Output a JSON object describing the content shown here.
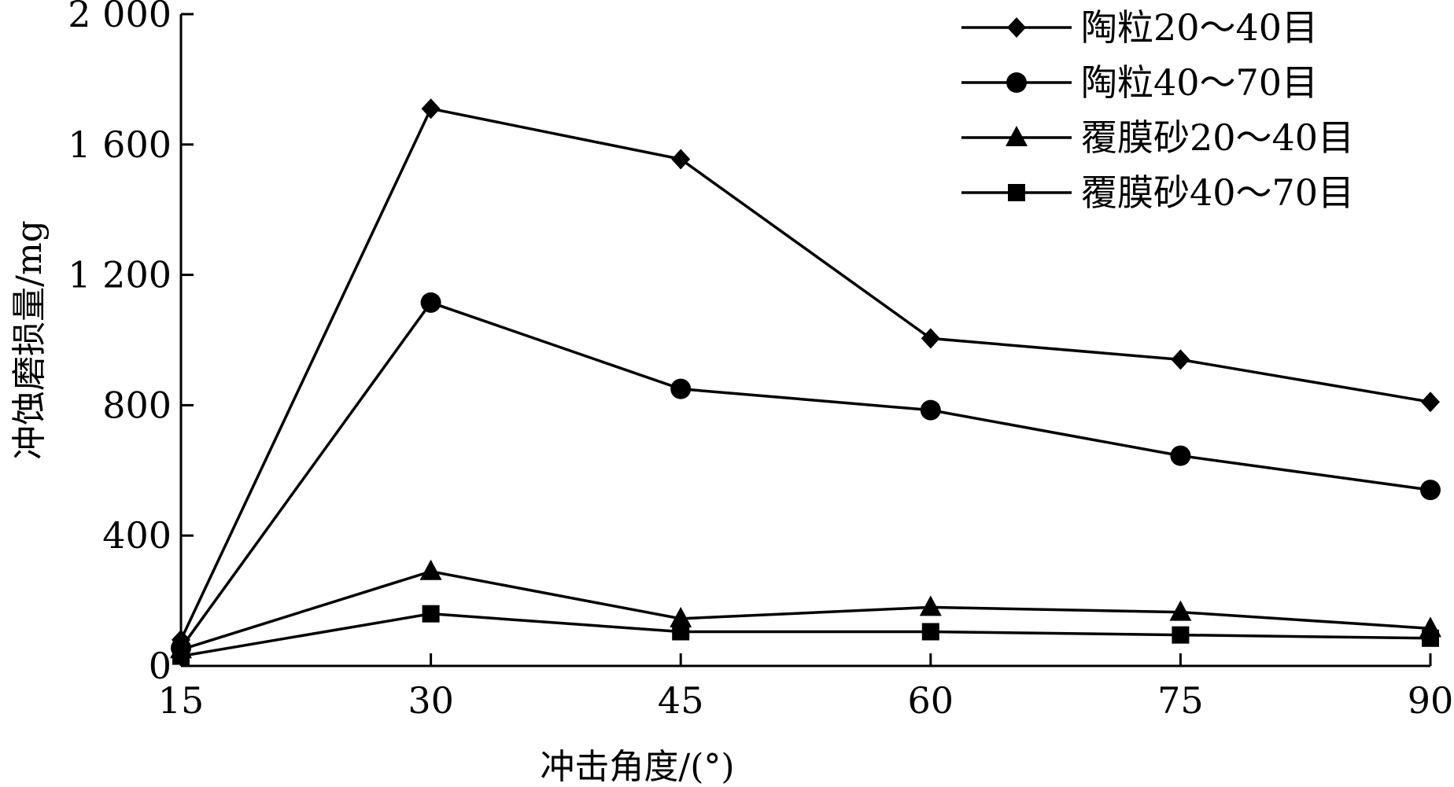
{
  "chart_data": {
    "type": "line",
    "title": "",
    "xlabel": "冲击角度/(°)",
    "ylabel": "冲蚀磨损量/mg",
    "x": [
      15,
      30,
      45,
      60,
      75,
      90
    ],
    "x_tick_labels": [
      "15",
      "30",
      "45",
      "60",
      "75",
      "90"
    ],
    "y_ticks": [
      0,
      400,
      800,
      1200,
      1600,
      2000
    ],
    "y_tick_labels": [
      "0",
      "400",
      "800",
      "1 200",
      "1 600",
      "2 000"
    ],
    "xlim": [
      15,
      90
    ],
    "ylim": [
      0,
      2000
    ],
    "grid": false,
    "legend_position": "top-right",
    "series": [
      {
        "name": "陶粒20～40目",
        "marker": "diamond",
        "values": [
          80,
          1710,
          1555,
          1005,
          940,
          810
        ]
      },
      {
        "name": "陶粒40～70目",
        "marker": "circle",
        "values": [
          55,
          1115,
          850,
          785,
          645,
          540
        ]
      },
      {
        "name": "覆膜砂20～40目",
        "marker": "triangle",
        "values": [
          50,
          290,
          145,
          180,
          165,
          115
        ]
      },
      {
        "name": "覆膜砂40～70目",
        "marker": "square",
        "values": [
          30,
          160,
          105,
          105,
          95,
          85
        ]
      }
    ]
  }
}
